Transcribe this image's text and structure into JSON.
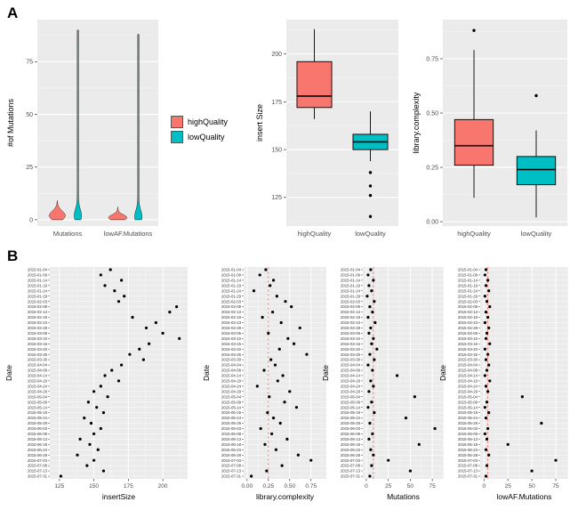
{
  "panels": {
    "a_label": "A",
    "b_label": "B"
  },
  "colors": {
    "high_quality": "#F8766D",
    "low_quality": "#00BFC4",
    "panel_bg": "#EBEBEB",
    "grid_major": "#FFFFFF",
    "grid_minor": "#F4F4F4",
    "vline": "#F8766D",
    "point": "#000000"
  },
  "legend": {
    "items": [
      {
        "label": "highQuality",
        "color": "#F8766D"
      },
      {
        "label": "lowQuality",
        "color": "#00BFC4"
      }
    ]
  },
  "dates": [
    "2015-01-04",
    "2015-01-09",
    "2015-01-14",
    "2015-01-19",
    "2015-01-24",
    "2015-01-29",
    "2015-02-03",
    "2015-02-08",
    "2015-02-13",
    "2015-02-18",
    "2015-02-23",
    "2015-02-28",
    "2015-03-05",
    "2015-03-10",
    "2015-03-15",
    "2015-03-20",
    "2015-03-25",
    "2015-03-30",
    "2015-04-04",
    "2015-04-09",
    "2015-04-14",
    "2015-04-19",
    "2015-04-24",
    "2015-04-29",
    "2015-05-04",
    "2015-05-09",
    "2015-05-14",
    "2015-05-19",
    "2015-05-24",
    "2015-05-29",
    "2015-06-03",
    "2015-06-08",
    "2015-06-13",
    "2015-06-18",
    "2015-06-23",
    "2015-06-28",
    "2015-07-03",
    "2015-07-08",
    "2015-07-13",
    "2015-07-31"
  ],
  "chart_data": [
    {
      "id": "violin-mutations",
      "type": "violin",
      "title": "",
      "ylabel": "#of Mutations",
      "categories": [
        "Mutations",
        "lowAF.Mutations"
      ],
      "ylim": [
        -3,
        95
      ],
      "yticks": [
        {
          "v": 0,
          "label": "0"
        },
        {
          "v": 25,
          "label": "25"
        },
        {
          "v": 50,
          "label": "50"
        },
        {
          "v": 75,
          "label": "75"
        }
      ],
      "groups": [
        "highQuality",
        "lowQuality"
      ],
      "violins": [
        {
          "category": "Mutations",
          "group": "highQuality",
          "color": "#F8766D",
          "min": 0,
          "max": 9,
          "mode": 2,
          "sigma": 2.2,
          "half_width": 0.13,
          "stem": 0
        },
        {
          "category": "Mutations",
          "group": "lowQuality",
          "color": "#00BFC4",
          "min": 0,
          "max": 90,
          "mode": 2,
          "sigma": 3,
          "half_width": 0.05,
          "stem": 0.008
        },
        {
          "category": "lowAF.Mutations",
          "group": "highQuality",
          "color": "#F8766D",
          "min": 0,
          "max": 6,
          "mode": 1,
          "sigma": 1.4,
          "half_width": 0.15,
          "stem": 0
        },
        {
          "category": "lowAF.Mutations",
          "group": "lowQuality",
          "color": "#00BFC4",
          "min": 0,
          "max": 88,
          "mode": 1.5,
          "sigma": 3,
          "half_width": 0.05,
          "stem": 0.008
        }
      ]
    },
    {
      "id": "box-insert-size",
      "type": "box",
      "title": "",
      "ylabel": "insert Size",
      "categories": [
        "highQuality",
        "lowQuality"
      ],
      "ylim": [
        110,
        218
      ],
      "yticks": [
        {
          "v": 125,
          "label": "125"
        },
        {
          "v": 150,
          "label": "150"
        },
        {
          "v": 175,
          "label": "175"
        },
        {
          "v": 200,
          "label": "200"
        }
      ],
      "boxes": [
        {
          "category": "highQuality",
          "color": "#F8766D",
          "whisker_low": 166,
          "q1": 172,
          "median": 178,
          "q3": 196,
          "whisker_high": 213,
          "outliers": []
        },
        {
          "category": "lowQuality",
          "color": "#00BFC4",
          "whisker_low": 144,
          "q1": 150,
          "median": 154,
          "q3": 158,
          "whisker_high": 170,
          "outliers": [
            138,
            131,
            126,
            115
          ]
        }
      ]
    },
    {
      "id": "box-library-complexity",
      "type": "box",
      "title": "",
      "ylabel": "library.complexity",
      "categories": [
        "highQuality",
        "lowQuality"
      ],
      "ylim": [
        -0.02,
        0.93
      ],
      "yticks": [
        {
          "v": 0,
          "label": "0.00"
        },
        {
          "v": 0.25,
          "label": "0.25"
        },
        {
          "v": 0.5,
          "label": "0.50"
        },
        {
          "v": 0.75,
          "label": "0.75"
        }
      ],
      "boxes": [
        {
          "category": "highQuality",
          "color": "#F8766D",
          "whisker_low": 0.11,
          "q1": 0.26,
          "median": 0.35,
          "q3": 0.47,
          "whisker_high": 0.79,
          "outliers": [
            0.88
          ]
        },
        {
          "category": "lowQuality",
          "color": "#00BFC4",
          "whisker_low": 0.02,
          "q1": 0.17,
          "median": 0.24,
          "q3": 0.3,
          "whisker_high": 0.42,
          "outliers": [
            0.58
          ]
        }
      ]
    },
    {
      "id": "scatter-insert-size",
      "type": "scatter",
      "xlabel": "insertSize",
      "ylabel": "Date",
      "xlim": [
        118,
        218
      ],
      "xticks": [
        {
          "v": 125,
          "label": "125"
        },
        {
          "v": 150,
          "label": "150"
        },
        {
          "v": 175,
          "label": "175"
        },
        {
          "v": 200,
          "label": "200"
        }
      ],
      "vline": null,
      "values": [
        162,
        155,
        170,
        158,
        165,
        172,
        168,
        210,
        205,
        178,
        195,
        188,
        200,
        212,
        190,
        183,
        176,
        186,
        170,
        163,
        158,
        168,
        155,
        150,
        160,
        146,
        152,
        157,
        143,
        148,
        155,
        150,
        140,
        147,
        153,
        138,
        150,
        145,
        157,
        126
      ]
    },
    {
      "id": "scatter-library-complexity",
      "type": "scatter",
      "xlabel": "library.complexity",
      "ylabel": "Date",
      "xlim": [
        -0.04,
        0.93
      ],
      "xticks": [
        {
          "v": 0,
          "label": "0.00"
        },
        {
          "v": 0.25,
          "label": "0.25"
        },
        {
          "v": 0.5,
          "label": "0.50"
        },
        {
          "v": 0.75,
          "label": "0.75"
        }
      ],
      "vline": 0.25,
      "values": [
        0.22,
        0.15,
        0.31,
        0.27,
        0.08,
        0.35,
        0.45,
        0.52,
        0.3,
        0.18,
        0.4,
        0.62,
        0.25,
        0.48,
        0.55,
        0.38,
        0.7,
        0.28,
        0.33,
        0.2,
        0.42,
        0.36,
        0.12,
        0.5,
        0.26,
        0.44,
        0.58,
        0.24,
        0.31,
        0.39,
        0.16,
        0.29,
        0.47,
        0.21,
        0.34,
        0.6,
        0.75,
        0.41,
        0.23,
        0.05
      ]
    },
    {
      "id": "scatter-mutations",
      "type": "scatter",
      "xlabel": "Mutations",
      "ylabel": "Date",
      "xlim": [
        -4,
        88
      ],
      "xticks": [
        {
          "v": 0,
          "label": "0"
        },
        {
          "v": 25,
          "label": "25"
        },
        {
          "v": 50,
          "label": "50"
        },
        {
          "v": 75,
          "label": "75"
        }
      ],
      "vline": 8,
      "values": [
        5,
        2,
        8,
        3,
        6,
        1,
        9,
        4,
        7,
        2,
        10,
        5,
        3,
        8,
        6,
        12,
        4,
        9,
        2,
        7,
        35,
        5,
        8,
        3,
        55,
        6,
        2,
        9,
        45,
        4,
        78,
        7,
        3,
        60,
        5,
        8,
        25,
        6,
        50,
        4
      ]
    },
    {
      "id": "scatter-lowaf-mutations",
      "type": "scatter",
      "xlabel": "lowAF.Mutations",
      "ylabel": "Date",
      "xlim": [
        -4,
        88
      ],
      "xticks": [
        {
          "v": 0,
          "label": "0"
        },
        {
          "v": 25,
          "label": "25"
        },
        {
          "v": 50,
          "label": "50"
        },
        {
          "v": 75,
          "label": "75"
        }
      ],
      "vline": 4,
      "values": [
        2,
        1,
        4,
        2,
        5,
        1,
        3,
        6,
        2,
        4,
        1,
        5,
        3,
        2,
        6,
        1,
        4,
        2,
        5,
        3,
        1,
        6,
        2,
        4,
        40,
        3,
        1,
        5,
        2,
        60,
        4,
        1,
        3,
        25,
        2,
        5,
        75,
        3,
        50,
        2
      ]
    }
  ]
}
